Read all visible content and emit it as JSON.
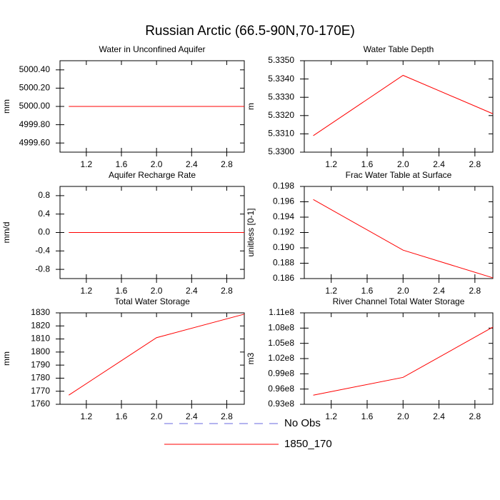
{
  "title": "Russian Arctic (66.5-90N,70-170E)",
  "legend": [
    {
      "name": "No Obs",
      "color": "#6a6adf",
      "dashed": true
    },
    {
      "name": "1850_170",
      "color": "#ff0000",
      "dashed": false
    }
  ],
  "chart_data": [
    {
      "type": "line",
      "title": "Water in Unconfined Aquifer",
      "ylabel": "mm",
      "x": [
        1,
        2,
        3
      ],
      "series": [
        {
          "color": "#ff0000",
          "values": [
            5000,
            5000,
            5000
          ]
        }
      ],
      "xlim": [
        0.9,
        3.0
      ],
      "xticks": [
        1.2,
        1.6,
        {
          "value": 2,
          "label": "2.0"
        },
        2.4,
        2.8
      ],
      "ylim": [
        4999.5,
        5000.5
      ],
      "yticks": [
        {
          "value": 4999.6,
          "label": "4999.60"
        },
        {
          "value": 4999.8,
          "label": "4999.80"
        },
        {
          "value": 5000,
          "label": "5000.00"
        },
        {
          "value": 5000.2,
          "label": "5000.20"
        },
        {
          "value": 5000.4,
          "label": "5000.40"
        }
      ]
    },
    {
      "type": "line",
      "title": "Water Table Depth",
      "ylabel": "m",
      "x": [
        1,
        2,
        3
      ],
      "series": [
        {
          "color": "#ff0000",
          "values": [
            5.3309,
            5.3342,
            5.3321
          ]
        }
      ],
      "xlim": [
        0.9,
        3.0
      ],
      "xticks": [
        1.2,
        1.6,
        {
          "value": 2,
          "label": "2.0"
        },
        2.4,
        2.8
      ],
      "ylim": [
        5.33,
        5.335
      ],
      "yticks": [
        {
          "value": 5.33,
          "label": "5.3300"
        },
        {
          "value": 5.331,
          "label": "5.3310"
        },
        {
          "value": 5.332,
          "label": "5.3320"
        },
        {
          "value": 5.333,
          "label": "5.3330"
        },
        {
          "value": 5.334,
          "label": "5.3340"
        },
        {
          "value": 5.335,
          "label": "5.3350"
        }
      ]
    },
    {
      "type": "line",
      "title": "Aquifer Recharge Rate",
      "ylabel": "mm/d",
      "x": [
        1,
        2,
        3
      ],
      "series": [
        {
          "color": "#ff0000",
          "values": [
            0,
            0,
            0
          ]
        }
      ],
      "xlim": [
        0.9,
        3.0
      ],
      "xticks": [
        1.2,
        1.6,
        {
          "value": 2,
          "label": "2.0"
        },
        2.4,
        2.8
      ],
      "ylim": [
        -1,
        1
      ],
      "yticks": [
        -0.8,
        -0.4,
        {
          "value": 0,
          "label": "0.0"
        },
        0.4,
        0.8
      ]
    },
    {
      "type": "line",
      "title": "Frac Water Table at Surface",
      "ylabel": "unitless [0-1]",
      "x": [
        1,
        2,
        3
      ],
      "series": [
        {
          "color": "#ff0000",
          "values": [
            0.1963,
            0.1897,
            0.1861
          ]
        }
      ],
      "xlim": [
        0.9,
        3.0
      ],
      "xticks": [
        1.2,
        1.6,
        {
          "value": 2,
          "label": "2.0"
        },
        2.4,
        2.8
      ],
      "ylim": [
        0.186,
        0.198
      ],
      "yticks": [
        0.186,
        0.188,
        {
          "value": 0.19,
          "label": "0.190"
        },
        0.192,
        0.194,
        0.196,
        0.198
      ]
    },
    {
      "type": "line",
      "title": "Total Water Storage",
      "ylabel": "mm",
      "x": [
        1,
        2,
        3
      ],
      "series": [
        {
          "color": "#ff0000",
          "values": [
            1767,
            1811,
            1829
          ]
        }
      ],
      "xlim": [
        0.9,
        3.0
      ],
      "xticks": [
        1.2,
        1.6,
        {
          "value": 2,
          "label": "2.0"
        },
        2.4,
        2.8
      ],
      "ylim": [
        1760,
        1830
      ],
      "yticks": [
        1760,
        1770,
        1780,
        1790,
        1800,
        1810,
        1820,
        1830
      ]
    },
    {
      "type": "line",
      "title": "River Channel Total Water Storage",
      "ylabel": "m3",
      "x": [
        1,
        2,
        3
      ],
      "series": [
        {
          "color": "#ff0000",
          "values": [
            94800000,
            98300000,
            108200000
          ]
        }
      ],
      "xlim": [
        0.9,
        3.0
      ],
      "xticks": [
        1.2,
        1.6,
        {
          "value": 2,
          "label": "2.0"
        },
        2.4,
        2.8
      ],
      "ylim": [
        93000000,
        111000000
      ],
      "yticks": [
        {
          "value": 93000000,
          "label": "0.93e8"
        },
        {
          "value": 96000000,
          "label": "0.96e8"
        },
        {
          "value": 99000000,
          "label": "0.99e8"
        },
        {
          "value": 102000000,
          "label": "1.02e8"
        },
        {
          "value": 105000000,
          "label": "1.05e8"
        },
        {
          "value": 108000000,
          "label": "1.08e8"
        },
        {
          "value": 111000000,
          "label": "1.11e8"
        }
      ]
    }
  ]
}
